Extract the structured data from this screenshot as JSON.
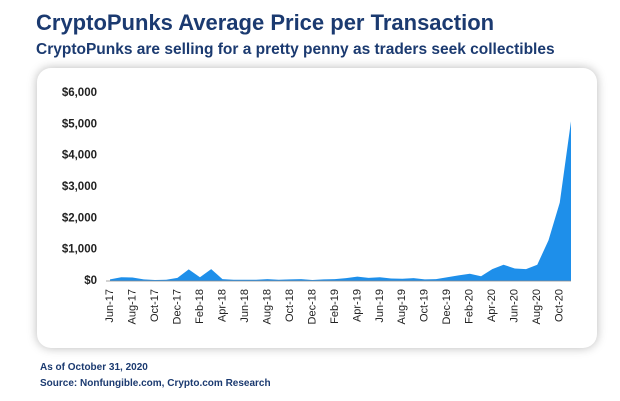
{
  "chart_data": {
    "type": "area",
    "title": "CryptoPunks Average Price per Transaction",
    "subtitle": "CryptoPunks are selling for a pretty penny as traders seek collectibles",
    "notes": [
      "As of October 31, 2020",
      "Source: Nonfungible.com, Crypto.com Research"
    ],
    "categories": [
      "Jun-17",
      null,
      "Aug-17",
      null,
      "Oct-17",
      null,
      "Dec-17",
      null,
      "Feb-18",
      null,
      "Apr-18",
      null,
      "Jun-18",
      null,
      "Aug-18",
      null,
      "Oct-18",
      null,
      "Dec-18",
      null,
      "Feb-19",
      null,
      "Apr-19",
      null,
      "Jun-19",
      null,
      "Aug-19",
      null,
      "Oct-19",
      null,
      "Dec-19",
      null,
      "Feb-20",
      null,
      "Apr-20",
      null,
      "Jun-20",
      null,
      "Aug-20",
      null,
      "Oct-20",
      null
    ],
    "values": [
      50,
      120,
      110,
      50,
      30,
      40,
      100,
      370,
      120,
      380,
      60,
      40,
      40,
      40,
      60,
      40,
      50,
      60,
      30,
      50,
      60,
      90,
      140,
      100,
      120,
      80,
      70,
      90,
      50,
      60,
      120,
      180,
      230,
      150,
      380,
      520,
      400,
      380,
      520,
      1300,
      2500,
      5100
    ],
    "color": "#1e8fea",
    "ylim": [
      0,
      6000
    ],
    "yticks": [
      {
        "value": 0,
        "label": "$0"
      },
      {
        "value": 1000,
        "label": "$1,000"
      },
      {
        "value": 2000,
        "label": "$2,000"
      },
      {
        "value": 3000,
        "label": "$3,000"
      },
      {
        "value": 4000,
        "label": "$4,000"
      },
      {
        "value": 5000,
        "label": "$5,000"
      },
      {
        "value": 6000,
        "label": "$6,000"
      }
    ],
    "grid": false
  }
}
